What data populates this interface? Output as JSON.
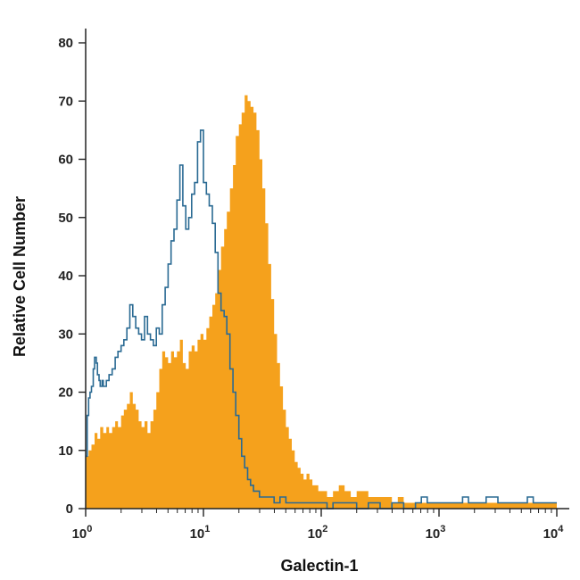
{
  "chart_data": {
    "type": "area",
    "xlabel": "Galectin-1",
    "ylabel": "Relative Cell Number",
    "x_scale": "log10",
    "xlim": [
      1,
      10000
    ],
    "ylim": [
      0,
      80
    ],
    "grid": false,
    "x_ticks": [
      {
        "value": 1,
        "base": "10",
        "exp": "0"
      },
      {
        "value": 10,
        "base": "10",
        "exp": "1"
      },
      {
        "value": 100,
        "base": "10",
        "exp": "2"
      },
      {
        "value": 1000,
        "base": "10",
        "exp": "3"
      },
      {
        "value": 10000,
        "base": "10",
        "exp": "4"
      }
    ],
    "y_ticks": [
      0,
      10,
      20,
      30,
      40,
      50,
      60,
      70,
      80
    ],
    "series": [
      {
        "style": "filled",
        "color": "#f5a11c",
        "points": [
          [
            1.0,
            9
          ],
          [
            1.06,
            10
          ],
          [
            1.12,
            11
          ],
          [
            1.19,
            13
          ],
          [
            1.26,
            12
          ],
          [
            1.33,
            14
          ],
          [
            1.41,
            13
          ],
          [
            1.5,
            14
          ],
          [
            1.58,
            13
          ],
          [
            1.68,
            14
          ],
          [
            1.78,
            15
          ],
          [
            1.88,
            14
          ],
          [
            2.0,
            16
          ],
          [
            2.11,
            17
          ],
          [
            2.24,
            18
          ],
          [
            2.37,
            20
          ],
          [
            2.51,
            18
          ],
          [
            2.66,
            17
          ],
          [
            2.82,
            15
          ],
          [
            2.98,
            14
          ],
          [
            3.16,
            15
          ],
          [
            3.35,
            13
          ],
          [
            3.55,
            15
          ],
          [
            3.76,
            17
          ],
          [
            3.98,
            20
          ],
          [
            4.22,
            24
          ],
          [
            4.47,
            27
          ],
          [
            4.73,
            26
          ],
          [
            5.01,
            25
          ],
          [
            5.31,
            27
          ],
          [
            5.62,
            26
          ],
          [
            5.96,
            27
          ],
          [
            6.31,
            29
          ],
          [
            6.68,
            25
          ],
          [
            7.08,
            24
          ],
          [
            7.5,
            27
          ],
          [
            7.94,
            28
          ],
          [
            8.41,
            27
          ],
          [
            8.91,
            29
          ],
          [
            9.44,
            30
          ],
          [
            10.0,
            29
          ],
          [
            10.6,
            31
          ],
          [
            11.2,
            33
          ],
          [
            11.9,
            35
          ],
          [
            12.6,
            37
          ],
          [
            13.3,
            41
          ],
          [
            14.1,
            45
          ],
          [
            15.0,
            48
          ],
          [
            15.8,
            51
          ],
          [
            16.8,
            55
          ],
          [
            17.8,
            59
          ],
          [
            18.8,
            64
          ],
          [
            20.0,
            66
          ],
          [
            21.1,
            68
          ],
          [
            22.4,
            71
          ],
          [
            23.7,
            70
          ],
          [
            25.1,
            69
          ],
          [
            26.6,
            68
          ],
          [
            28.2,
            65
          ],
          [
            29.9,
            60
          ],
          [
            31.6,
            55
          ],
          [
            33.5,
            49
          ],
          [
            35.5,
            42
          ],
          [
            37.6,
            36
          ],
          [
            39.8,
            30
          ],
          [
            42.2,
            25
          ],
          [
            44.7,
            21
          ],
          [
            47.3,
            17
          ],
          [
            50.1,
            14
          ],
          [
            53.1,
            12
          ],
          [
            56.2,
            10
          ],
          [
            59.6,
            8
          ],
          [
            63.1,
            7
          ],
          [
            66.8,
            6
          ],
          [
            70.8,
            5
          ],
          [
            75.0,
            6
          ],
          [
            79.4,
            5
          ],
          [
            84.1,
            4
          ],
          [
            89.1,
            4
          ],
          [
            94.4,
            3
          ],
          [
            100,
            3
          ],
          [
            112,
            2
          ],
          [
            126,
            3
          ],
          [
            141,
            4
          ],
          [
            158,
            3
          ],
          [
            178,
            2
          ],
          [
            200,
            3
          ],
          [
            224,
            3
          ],
          [
            251,
            2
          ],
          [
            282,
            2
          ],
          [
            316,
            2
          ],
          [
            355,
            2
          ],
          [
            398,
            1
          ],
          [
            447,
            2
          ],
          [
            501,
            1
          ],
          [
            631,
            1
          ],
          [
            794,
            1
          ],
          [
            1000,
            1
          ],
          [
            1585,
            1
          ],
          [
            2512,
            1
          ],
          [
            3981,
            1
          ],
          [
            6310,
            1
          ],
          [
            10000,
            0
          ]
        ]
      },
      {
        "style": "outline",
        "color": "#2a6a93",
        "points": [
          [
            1.0,
            9
          ],
          [
            1.03,
            16
          ],
          [
            1.06,
            19
          ],
          [
            1.09,
            20
          ],
          [
            1.12,
            21
          ],
          [
            1.16,
            24
          ],
          [
            1.19,
            26
          ],
          [
            1.23,
            25
          ],
          [
            1.26,
            23
          ],
          [
            1.3,
            22
          ],
          [
            1.33,
            21
          ],
          [
            1.38,
            22
          ],
          [
            1.41,
            21
          ],
          [
            1.5,
            22
          ],
          [
            1.58,
            23
          ],
          [
            1.68,
            24
          ],
          [
            1.78,
            26
          ],
          [
            1.88,
            27
          ],
          [
            2.0,
            28
          ],
          [
            2.11,
            29
          ],
          [
            2.24,
            31
          ],
          [
            2.37,
            35
          ],
          [
            2.51,
            33
          ],
          [
            2.66,
            31
          ],
          [
            2.82,
            30
          ],
          [
            2.98,
            29
          ],
          [
            3.16,
            33
          ],
          [
            3.35,
            30
          ],
          [
            3.55,
            29
          ],
          [
            3.76,
            28
          ],
          [
            3.98,
            31
          ],
          [
            4.22,
            30
          ],
          [
            4.47,
            35
          ],
          [
            4.73,
            38
          ],
          [
            5.01,
            42
          ],
          [
            5.31,
            46
          ],
          [
            5.62,
            48
          ],
          [
            5.96,
            53
          ],
          [
            6.31,
            59
          ],
          [
            6.68,
            52
          ],
          [
            7.08,
            48
          ],
          [
            7.5,
            50
          ],
          [
            7.94,
            54
          ],
          [
            8.41,
            56
          ],
          [
            8.91,
            63
          ],
          [
            9.44,
            65
          ],
          [
            10.0,
            56
          ],
          [
            10.6,
            54
          ],
          [
            11.2,
            52
          ],
          [
            11.9,
            49
          ],
          [
            12.6,
            44
          ],
          [
            13.3,
            37
          ],
          [
            14.1,
            34
          ],
          [
            15.0,
            33
          ],
          [
            15.8,
            30
          ],
          [
            16.8,
            24
          ],
          [
            17.8,
            20
          ],
          [
            18.8,
            16
          ],
          [
            20.0,
            12
          ],
          [
            21.1,
            9
          ],
          [
            22.4,
            7
          ],
          [
            23.7,
            5
          ],
          [
            25.1,
            4
          ],
          [
            26.6,
            3
          ],
          [
            28.2,
            3
          ],
          [
            29.9,
            2
          ],
          [
            31.6,
            2
          ],
          [
            35.5,
            2
          ],
          [
            39.8,
            1
          ],
          [
            44.7,
            2
          ],
          [
            50.1,
            1
          ],
          [
            56.2,
            1
          ],
          [
            63.1,
            1
          ],
          [
            70.8,
            1
          ],
          [
            79.4,
            1
          ],
          [
            89.1,
            1
          ],
          [
            100,
            1
          ],
          [
            112,
            0
          ],
          [
            126,
            1
          ],
          [
            158,
            1
          ],
          [
            200,
            0
          ],
          [
            251,
            1
          ],
          [
            316,
            0
          ],
          [
            398,
            1
          ],
          [
            501,
            0
          ],
          [
            631,
            1
          ],
          [
            708,
            2
          ],
          [
            794,
            1
          ],
          [
            1000,
            1
          ],
          [
            1259,
            1
          ],
          [
            1585,
            2
          ],
          [
            1778,
            1
          ],
          [
            2239,
            1
          ],
          [
            2512,
            2
          ],
          [
            2818,
            2
          ],
          [
            3162,
            1
          ],
          [
            3981,
            1
          ],
          [
            5012,
            1
          ],
          [
            5623,
            2
          ],
          [
            6310,
            1
          ],
          [
            10000,
            1
          ]
        ]
      }
    ]
  }
}
